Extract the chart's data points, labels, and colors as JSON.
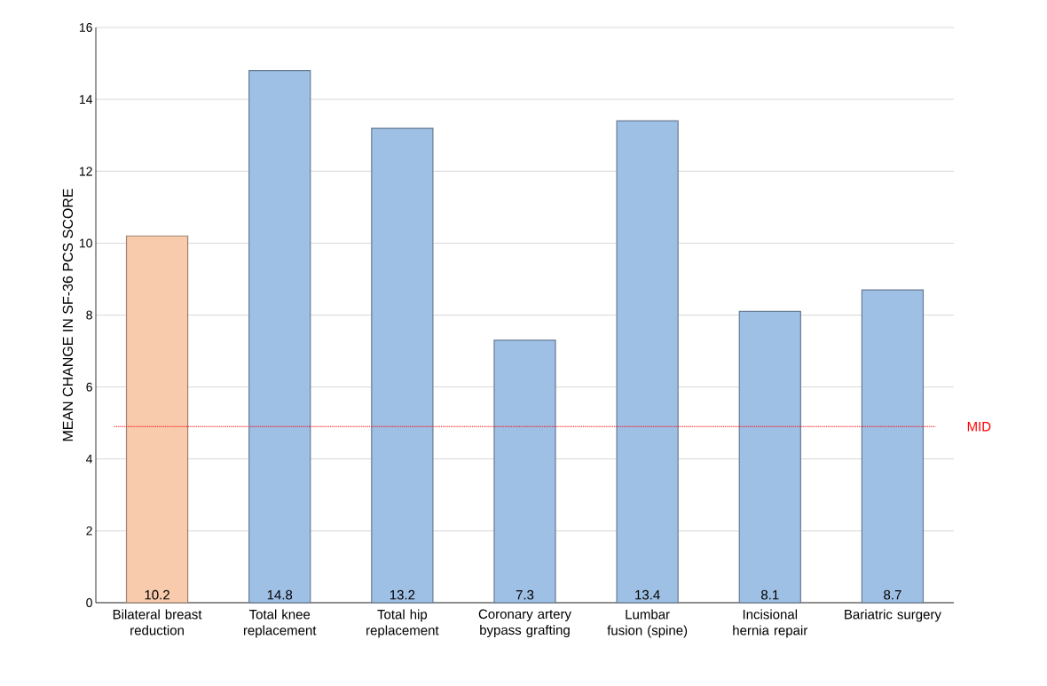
{
  "chart_data": {
    "type": "bar",
    "ylabel": "MEAN CHANGE IN SF-36 PCS SCORE",
    "categories": [
      "Bilateral breast reduction",
      "Total knee replacement",
      "Total hip replacement",
      "Coronary artery bypass grafting",
      "Lumbar fusion (spine)",
      "Incisional hernia repair",
      "Bariatric surgery"
    ],
    "values": [
      10.2,
      14.8,
      13.2,
      7.3,
      13.4,
      8.1,
      8.7
    ],
    "colors": [
      "#f8cbad",
      "#9fc0e5",
      "#9fc0e5",
      "#9fc0e5",
      "#9fc0e5",
      "#9fc0e5",
      "#9fc0e5"
    ],
    "ylim": [
      0,
      16
    ],
    "yticks": [
      0,
      2,
      4,
      6,
      8,
      10,
      12,
      14,
      16
    ],
    "grid": "y",
    "data_labels": true,
    "ref_lines": [
      {
        "axis": "y",
        "value": 4.9,
        "label": "MID",
        "color": "#ff0000",
        "line_style": "dotted"
      }
    ]
  }
}
